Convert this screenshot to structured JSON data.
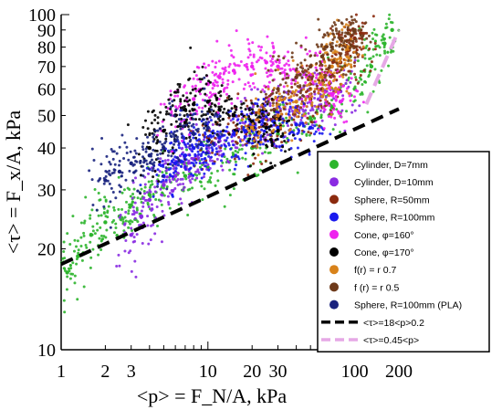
{
  "chart_data": {
    "type": "scatter",
    "x_scale": "log",
    "y_scale": "log",
    "xlim": [
      1,
      200
    ],
    "ylim": [
      10,
      100
    ],
    "x_ticks": [
      1,
      2,
      3,
      10,
      20,
      30,
      100,
      200
    ],
    "x_tick_labels": [
      "1",
      "2",
      "3",
      "10",
      "20",
      "30",
      "100",
      "200"
    ],
    "y_ticks": [
      10,
      20,
      30,
      40,
      50,
      60,
      70,
      80,
      90,
      100
    ],
    "y_tick_labels": [
      "10",
      "20",
      "30",
      "40",
      "50",
      "60",
      "70",
      "80",
      "90",
      "100"
    ],
    "xlabel": "<p> = F_N/A, kPa",
    "ylabel": "<τ> = F_x/A, kPa",
    "legend_placement": "bottom-right",
    "series": [
      {
        "name": "Cylinder, D=7mm",
        "kind": "points",
        "color": "#2db52d",
        "points": [
          [
            1.1,
            17
          ],
          [
            1.3,
            19
          ],
          [
            1.6,
            22
          ],
          [
            2,
            24
          ],
          [
            2.5,
            25
          ],
          [
            3,
            27
          ],
          [
            4,
            29
          ],
          [
            5,
            31
          ],
          [
            7,
            33
          ],
          [
            10,
            35
          ],
          [
            15,
            38
          ],
          [
            20,
            40
          ],
          [
            30,
            44
          ],
          [
            50,
            49
          ],
          [
            70,
            53
          ],
          [
            100,
            60
          ],
          [
            130,
            70
          ],
          [
            160,
            82
          ],
          [
            180,
            90
          ]
        ]
      },
      {
        "name": "Cylinder, D=10mm",
        "kind": "points",
        "color": "#8a2be2",
        "points": [
          [
            3,
            22
          ],
          [
            3.5,
            25
          ],
          [
            4,
            28
          ],
          [
            5,
            31
          ],
          [
            6,
            33
          ],
          [
            7,
            35
          ],
          [
            8,
            37
          ],
          [
            10,
            39
          ],
          [
            12,
            42
          ],
          [
            15,
            45
          ],
          [
            20,
            47
          ],
          [
            25,
            49
          ],
          [
            30,
            51
          ],
          [
            40,
            53
          ],
          [
            50,
            55
          ],
          [
            60,
            57
          ],
          [
            80,
            59
          ]
        ]
      },
      {
        "name": "Sphere, R=50mm",
        "kind": "points",
        "color": "#8b2a0e",
        "points": [
          [
            10,
            43
          ],
          [
            15,
            45
          ],
          [
            20,
            46
          ],
          [
            25,
            47
          ],
          [
            30,
            49
          ],
          [
            40,
            52
          ],
          [
            50,
            56
          ],
          [
            60,
            60
          ],
          [
            70,
            66
          ],
          [
            80,
            72
          ],
          [
            90,
            78
          ],
          [
            100,
            85
          ],
          [
            110,
            88
          ]
        ]
      },
      {
        "name": "Sphere, R=100mm",
        "kind": "points",
        "color": "#1a1aee",
        "points": [
          [
            5,
            33
          ],
          [
            6,
            36
          ],
          [
            7,
            38
          ],
          [
            8,
            40
          ],
          [
            9,
            41
          ],
          [
            10,
            42
          ],
          [
            12,
            43
          ],
          [
            15,
            44
          ],
          [
            18,
            45
          ],
          [
            20,
            45
          ],
          [
            25,
            46
          ],
          [
            30,
            46
          ],
          [
            40,
            47
          ],
          [
            50,
            46
          ]
        ]
      },
      {
        "name": "Cone, φ=160°",
        "kind": "points",
        "color": "#ee22ee",
        "points": [
          [
            6,
            50
          ],
          [
            8,
            56
          ],
          [
            10,
            62
          ],
          [
            12,
            65
          ],
          [
            15,
            68
          ],
          [
            20,
            70
          ],
          [
            25,
            72
          ],
          [
            30,
            70
          ],
          [
            40,
            68
          ],
          [
            50,
            66
          ],
          [
            60,
            62
          ],
          [
            70,
            58
          ],
          [
            80,
            55
          ]
        ]
      },
      {
        "name": "Cone, φ=170°",
        "kind": "points",
        "color": "#000000",
        "points": [
          [
            4,
            40
          ],
          [
            5,
            45
          ],
          [
            6,
            50
          ],
          [
            7,
            52
          ],
          [
            8,
            54
          ],
          [
            10,
            55
          ],
          [
            12,
            52
          ],
          [
            15,
            50
          ],
          [
            20,
            48
          ],
          [
            25,
            46
          ],
          [
            30,
            45
          ]
        ]
      },
      {
        "name": "f(r) = r^0.7",
        "kind": "points",
        "color": "#d8821a",
        "points": [
          [
            20,
            46
          ],
          [
            30,
            50
          ],
          [
            40,
            55
          ],
          [
            50,
            60
          ],
          [
            60,
            65
          ],
          [
            70,
            70
          ],
          [
            80,
            74
          ],
          [
            90,
            80
          ]
        ]
      },
      {
        "name": "f(r) = r^0.5",
        "kind": "points",
        "color": "#6e3a1a",
        "points": [
          [
            30,
            60
          ],
          [
            40,
            65
          ],
          [
            50,
            70
          ],
          [
            60,
            75
          ],
          [
            70,
            80
          ],
          [
            80,
            85
          ],
          [
            90,
            88
          ],
          [
            100,
            90
          ]
        ]
      },
      {
        "name": "Sphere, R=100mm (PLA)",
        "kind": "points",
        "color": "#1a237e",
        "points": [
          [
            2,
            32
          ],
          [
            2.5,
            34
          ],
          [
            3,
            36
          ],
          [
            4,
            38
          ],
          [
            5,
            40
          ],
          [
            6,
            42
          ],
          [
            8,
            44
          ],
          [
            10,
            46
          ]
        ]
      },
      {
        "name": "<τ>=18<p>^0.2",
        "kind": "line",
        "style": "dashed",
        "color": "#000000",
        "points": [
          [
            1,
            18
          ],
          [
            200,
            52.3
          ]
        ]
      },
      {
        "name": "<τ>=0.45<p>",
        "kind": "line",
        "style": "dashed",
        "color": "#e6a8e6",
        "points": [
          [
            120,
            54
          ],
          [
            200,
            90
          ]
        ]
      }
    ],
    "legend": [
      {
        "label": "Cylinder, D=7mm",
        "marker": "dot",
        "color": "#2db52d"
      },
      {
        "label": "Cylinder, D=10mm",
        "marker": "dot",
        "color": "#8a2be2"
      },
      {
        "label": "Sphere, R=50mm",
        "marker": "dot",
        "color": "#8b2a0e"
      },
      {
        "label": "Sphere, R=100mm",
        "marker": "dot",
        "color": "#1a1aee"
      },
      {
        "label": "Cone, φ=160°",
        "marker": "dot",
        "color": "#ee22ee"
      },
      {
        "label": "Cone, φ=170°",
        "marker": "dot",
        "color": "#000000"
      },
      {
        "label": "f(r) = r 0.7",
        "marker": "dot",
        "color": "#d8821a"
      },
      {
        "label": "f (r) = r 0.5",
        "marker": "dot",
        "color": "#6e3a1a"
      },
      {
        "label": "Sphere, R=100mm (PLA)",
        "marker": "dot",
        "color": "#1a237e"
      },
      {
        "label": "<τ>=18<p>0.2",
        "marker": "dash",
        "color": "#000000"
      },
      {
        "label": "<τ>=0.45<p>",
        "marker": "dash",
        "color": "#e6a8e6"
      }
    ]
  }
}
